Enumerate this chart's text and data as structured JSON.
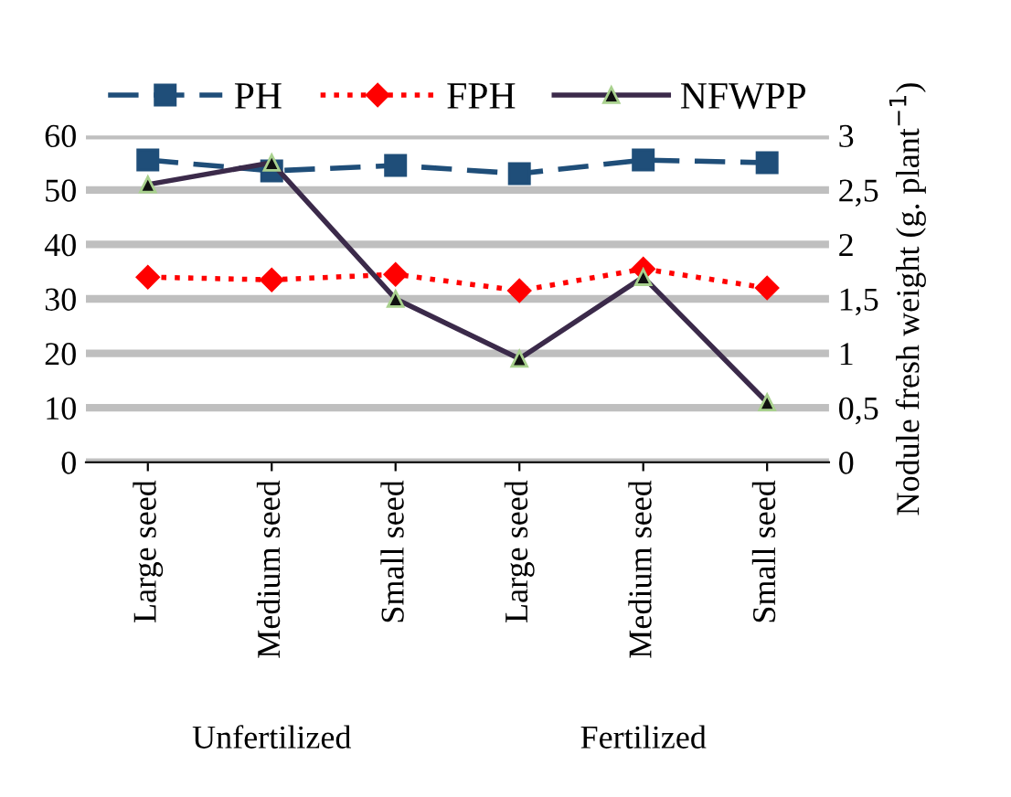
{
  "chart_data": {
    "type": "line",
    "categories": [
      "Large seed",
      "Medium seed",
      "Small seed",
      "Large seed",
      "Medium seed",
      "Small seed"
    ],
    "series": [
      {
        "name": "PH",
        "color": "#1f4e79",
        "values": [
          55.5,
          53.5,
          54.5,
          53,
          55.5,
          55
        ],
        "marker": "square",
        "line_style": "dashed"
      },
      {
        "name": "FPH",
        "color": "#ff0000",
        "values": [
          34,
          33.5,
          34.5,
          31.5,
          35.5,
          32
        ],
        "marker": "diamond",
        "line_style": "dotted"
      },
      {
        "name": "NFWPP",
        "color": "#3b2a4a",
        "values": [
          2.55,
          2.75,
          1.5,
          0.95,
          1.7,
          0.55
        ],
        "marker": "triangle",
        "line_style": "solid",
        "axis": "y2"
      }
    ],
    "ylim": [
      0,
      60
    ],
    "yticks": [
      0,
      10,
      20,
      30,
      40,
      50,
      60
    ],
    "y2lim": [
      0,
      3
    ],
    "y2ticks": [
      0,
      {
        "value": 0.5,
        "label": "0,5"
      },
      1,
      {
        "value": 1.5,
        "label": "1,5"
      },
      2,
      {
        "value": 2.5,
        "label": "2,5"
      },
      3
    ],
    "y2label": "Nodule fresh weight (g. plant$^{−1}$)",
    "annotations": [
      "Unfertilized",
      "Fertilized"
    ],
    "grid": "y",
    "legend": "top"
  }
}
